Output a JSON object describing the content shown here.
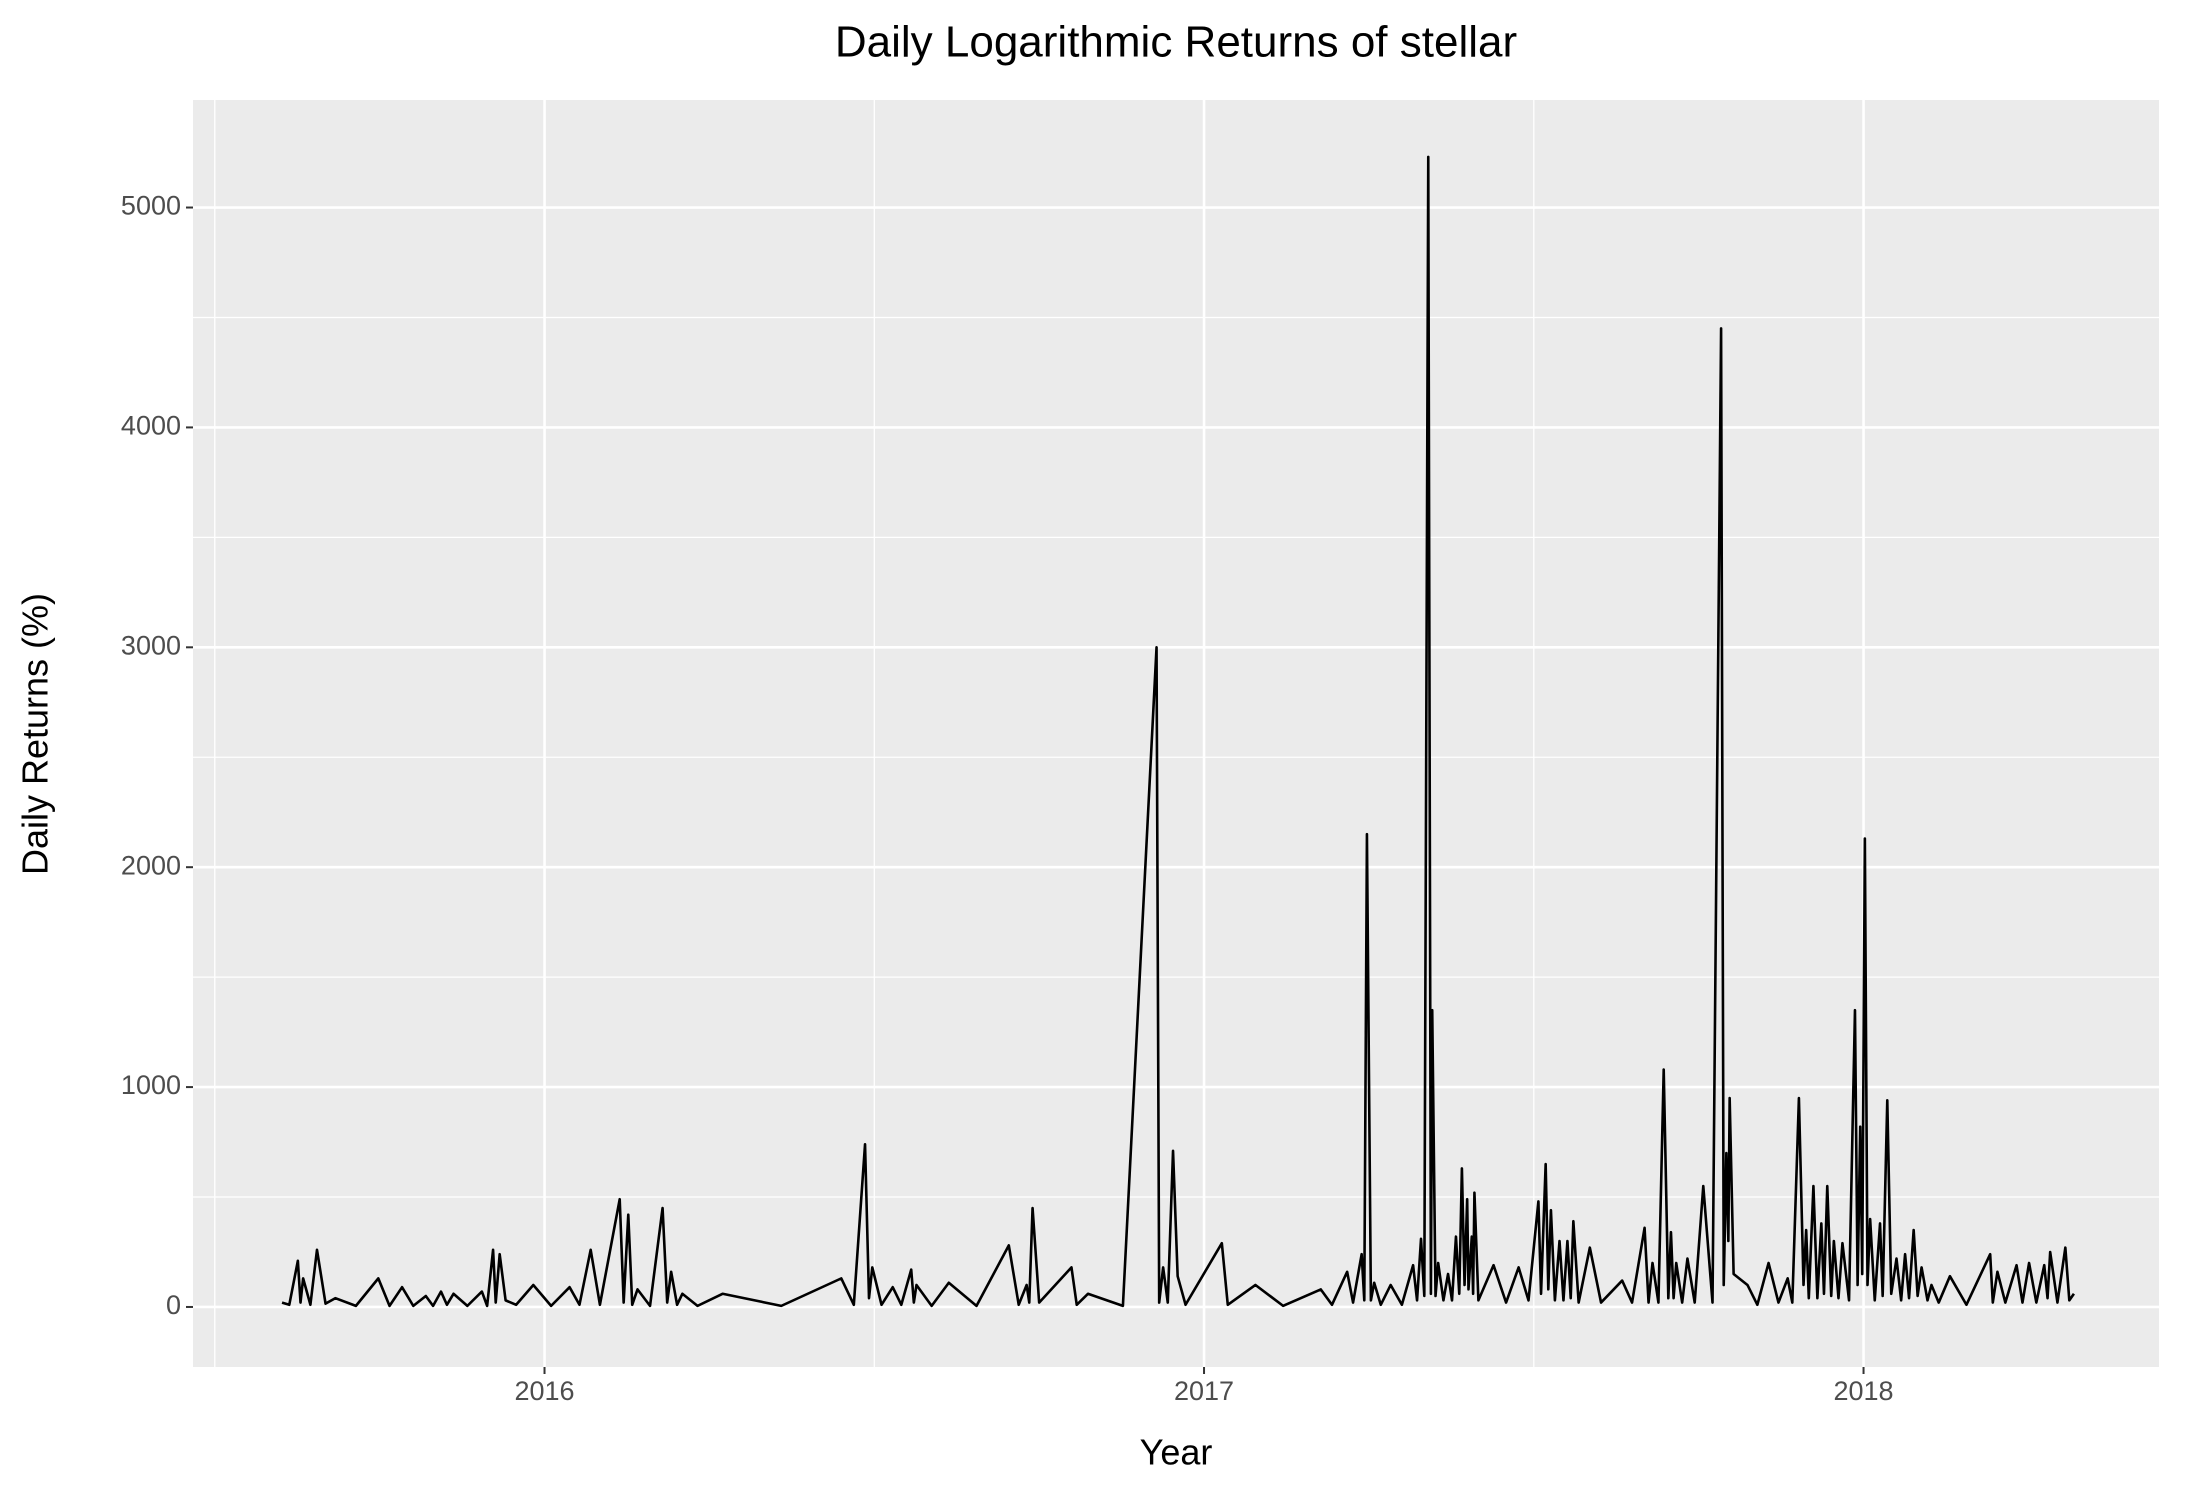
{
  "chart_data": {
    "type": "line",
    "title": "Daily Logarithmic Returns of stellar",
    "x_label": "Year",
    "y_label": "Daily Returns (%)",
    "x": [
      2015.602,
      2015.613,
      2015.626,
      2015.63,
      2015.634,
      2015.645,
      2015.655,
      2015.668,
      2015.683,
      2015.714,
      2015.748,
      2015.765,
      2015.784,
      2015.801,
      2015.82,
      2015.831,
      2015.843,
      2015.852,
      2015.862,
      2015.883,
      2015.905,
      2015.913,
      2015.922,
      2015.926,
      2015.932,
      2015.941,
      2015.957,
      2015.983,
      2016.01,
      2016.038,
      2016.053,
      2016.07,
      2016.084,
      2016.114,
      2016.12,
      2016.127,
      2016.133,
      2016.141,
      2016.16,
      2016.179,
      2016.186,
      2016.192,
      2016.201,
      2016.209,
      2016.232,
      2016.27,
      2016.359,
      2016.45,
      2016.469,
      2016.486,
      2016.492,
      2016.497,
      2016.511,
      2016.528,
      2016.541,
      2016.556,
      2016.56,
      2016.564,
      2016.587,
      2016.613,
      2016.655,
      2016.704,
      2016.719,
      2016.731,
      2016.735,
      2016.74,
      2016.75,
      2016.799,
      2016.807,
      2016.824,
      2016.877,
      2016.928,
      2016.932,
      2016.938,
      2016.945,
      2016.953,
      2016.96,
      2016.972,
      2017.027,
      2017.036,
      2017.078,
      2017.12,
      2017.177,
      2017.194,
      2017.217,
      2017.226,
      2017.239,
      2017.243,
      2017.247,
      2017.253,
      2017.258,
      2017.268,
      2017.283,
      2017.3,
      2017.317,
      2017.323,
      2017.329,
      2017.334,
      2017.34,
      2017.344,
      2017.346,
      2017.351,
      2017.355,
      2017.363,
      2017.37,
      2017.376,
      2017.382,
      2017.387,
      2017.391,
      2017.395,
      2017.399,
      2017.401,
      2017.406,
      2017.408,
      2017.41,
      2017.416,
      2017.439,
      2017.458,
      2017.477,
      2017.492,
      2017.507,
      2017.511,
      2017.518,
      2017.522,
      2017.526,
      2017.532,
      2017.539,
      2017.545,
      2017.551,
      2017.556,
      2017.56,
      2017.568,
      2017.585,
      2017.602,
      2017.634,
      2017.649,
      2017.668,
      2017.674,
      2017.68,
      2017.689,
      2017.697,
      2017.704,
      2017.708,
      2017.712,
      2017.716,
      2017.725,
      2017.733,
      2017.744,
      2017.757,
      2017.771,
      2017.784,
      2017.788,
      2017.792,
      2017.795,
      2017.797,
      2017.803,
      2017.824,
      2017.839,
      2017.856,
      2017.871,
      2017.885,
      2017.892,
      2017.902,
      2017.909,
      2017.913,
      2017.917,
      2017.924,
      2017.93,
      2017.936,
      2017.94,
      2017.945,
      2017.951,
      2017.955,
      2017.962,
      2017.968,
      2017.978,
      2017.987,
      2017.991,
      2017.995,
      2017.998,
      2018.002,
      2018.006,
      2018.01,
      2018.017,
      2018.025,
      2018.029,
      2018.036,
      2018.042,
      2018.05,
      2018.057,
      2018.063,
      2018.069,
      2018.076,
      2018.082,
      2018.088,
      2018.097,
      2018.103,
      2018.114,
      2018.131,
      2018.156,
      2018.192,
      2018.196,
      2018.203,
      2018.215,
      2018.232,
      2018.241,
      2018.251,
      2018.262,
      2018.274,
      2018.279,
      2018.283,
      2018.294,
      2018.306,
      2018.312,
      2018.319
    ],
    "values": [
      20,
      10,
      210,
      20,
      130,
      10,
      260,
      15,
      40,
      5,
      130,
      5,
      90,
      5,
      50,
      5,
      70,
      10,
      60,
      5,
      70,
      5,
      260,
      20,
      240,
      30,
      10,
      100,
      5,
      90,
      10,
      260,
      10,
      490,
      20,
      420,
      10,
      80,
      5,
      450,
      20,
      160,
      10,
      60,
      5,
      60,
      5,
      130,
      10,
      740,
      40,
      180,
      10,
      90,
      10,
      170,
      20,
      100,
      5,
      110,
      5,
      280,
      10,
      100,
      20,
      450,
      20,
      180,
      10,
      60,
      5,
      3000,
      20,
      180,
      20,
      710,
      140,
      10,
      290,
      10,
      100,
      5,
      80,
      10,
      160,
      20,
      240,
      30,
      2150,
      30,
      110,
      10,
      100,
      10,
      190,
      30,
      310,
      50,
      5230,
      60,
      1350,
      50,
      200,
      30,
      150,
      30,
      320,
      60,
      630,
      100,
      490,
      80,
      320,
      60,
      520,
      30,
      190,
      20,
      180,
      30,
      480,
      60,
      650,
      80,
      440,
      30,
      300,
      30,
      300,
      40,
      390,
      20,
      270,
      20,
      120,
      20,
      360,
      20,
      200,
      20,
      1080,
      40,
      340,
      40,
      200,
      20,
      220,
      20,
      550,
      20,
      4450,
      100,
      700,
      300,
      950,
      150,
      100,
      10,
      200,
      20,
      130,
      20,
      950,
      100,
      350,
      40,
      550,
      40,
      380,
      60,
      550,
      50,
      300,
      40,
      290,
      30,
      1350,
      100,
      820,
      150,
      2130,
      100,
      400,
      30,
      380,
      50,
      940,
      60,
      220,
      30,
      240,
      40,
      350,
      50,
      180,
      30,
      100,
      20,
      140,
      10,
      240,
      20,
      160,
      20,
      190,
      20,
      200,
      20,
      190,
      40,
      250,
      20,
      270,
      30,
      60
    ],
    "color": "#000000",
    "xlim": [
      2015.467,
      2018.448
    ],
    "xticks": [
      2016,
      2017,
      2018
    ],
    "x_minor_ticks": [
      2015.5,
      2016.5,
      2017.5
    ],
    "ylim": [
      -273,
      5489
    ],
    "yticks": [
      0,
      1000,
      2000,
      3000,
      4000,
      5000
    ],
    "y_minor_ticks": [
      500,
      1500,
      2500,
      3500,
      4500
    ],
    "grid": true
  }
}
